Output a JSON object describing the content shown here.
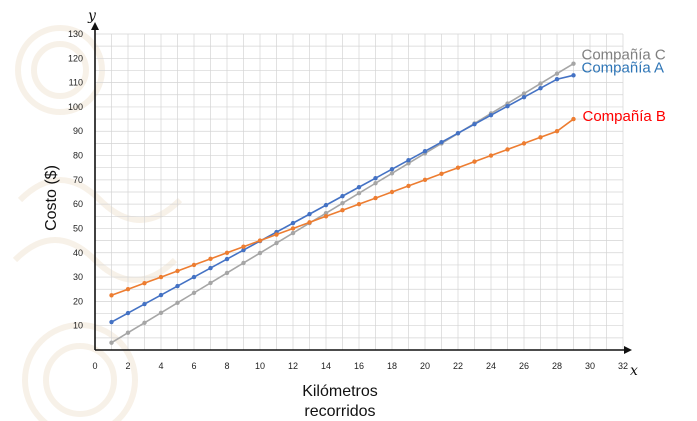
{
  "chart_data": {
    "type": "line",
    "y_axis_var": "y",
    "x_axis_var": "x",
    "ylabel": "Costo ($)",
    "xlabel": [
      "Kilómetros",
      "recorridos"
    ],
    "xlim": [
      0,
      32
    ],
    "ylim": [
      0,
      130
    ],
    "x_ticks": [
      0,
      2,
      4,
      6,
      8,
      10,
      12,
      14,
      16,
      18,
      20,
      22,
      24,
      26,
      28,
      30,
      32
    ],
    "y_ticks": [
      10,
      20,
      30,
      40,
      50,
      60,
      70,
      80,
      90,
      100,
      110,
      120,
      130
    ],
    "grid": true,
    "x": [
      1,
      2,
      3,
      4,
      5,
      6,
      7,
      8,
      9,
      10,
      11,
      12,
      13,
      14,
      15,
      16,
      17,
      18,
      19,
      20,
      21,
      22,
      23,
      24,
      25,
      26,
      27,
      28,
      29
    ],
    "series": [
      {
        "name": "Compañía C",
        "color": "#a6a6a6",
        "values": [
          3,
          7.1,
          11.2,
          15.3,
          19.4,
          23.5,
          27.6,
          31.7,
          35.8,
          39.9,
          44,
          48.1,
          52.2,
          56.3,
          60.4,
          64.5,
          68.6,
          72.7,
          76.8,
          80.9,
          85,
          89.1,
          93.2,
          97.3,
          101.4,
          105.5,
          109.6,
          113.7,
          117.8
        ]
      },
      {
        "name": "Compañía A",
        "color": "#4472c4",
        "values": [
          11.5,
          15.2,
          18.9,
          22.6,
          26.3,
          30,
          33.7,
          37.4,
          41.1,
          44.8,
          48.5,
          52.2,
          55.9,
          59.6,
          63.3,
          67,
          70.7,
          74.4,
          78.1,
          81.8,
          85.5,
          89.2,
          92.9,
          96.6,
          100.3,
          104,
          107.7,
          111.4,
          113
        ]
      },
      {
        "name": "Compañía B",
        "color": "#ed7d31",
        "values": [
          22.5,
          25,
          27.5,
          30,
          32.5,
          35,
          37.5,
          40,
          42.5,
          45,
          47.5,
          50,
          52.5,
          55,
          57.5,
          60,
          62.5,
          65,
          67.5,
          70,
          72.5,
          75,
          77.5,
          80,
          82.5,
          85,
          87.5,
          90,
          95
        ]
      }
    ],
    "labels": [
      {
        "text": "Compañía C",
        "color": "#7f7f7f"
      },
      {
        "text": "Compañía A",
        "color": "#2e75b6"
      },
      {
        "text": "Compañía B",
        "color": "#ff0000"
      }
    ]
  }
}
